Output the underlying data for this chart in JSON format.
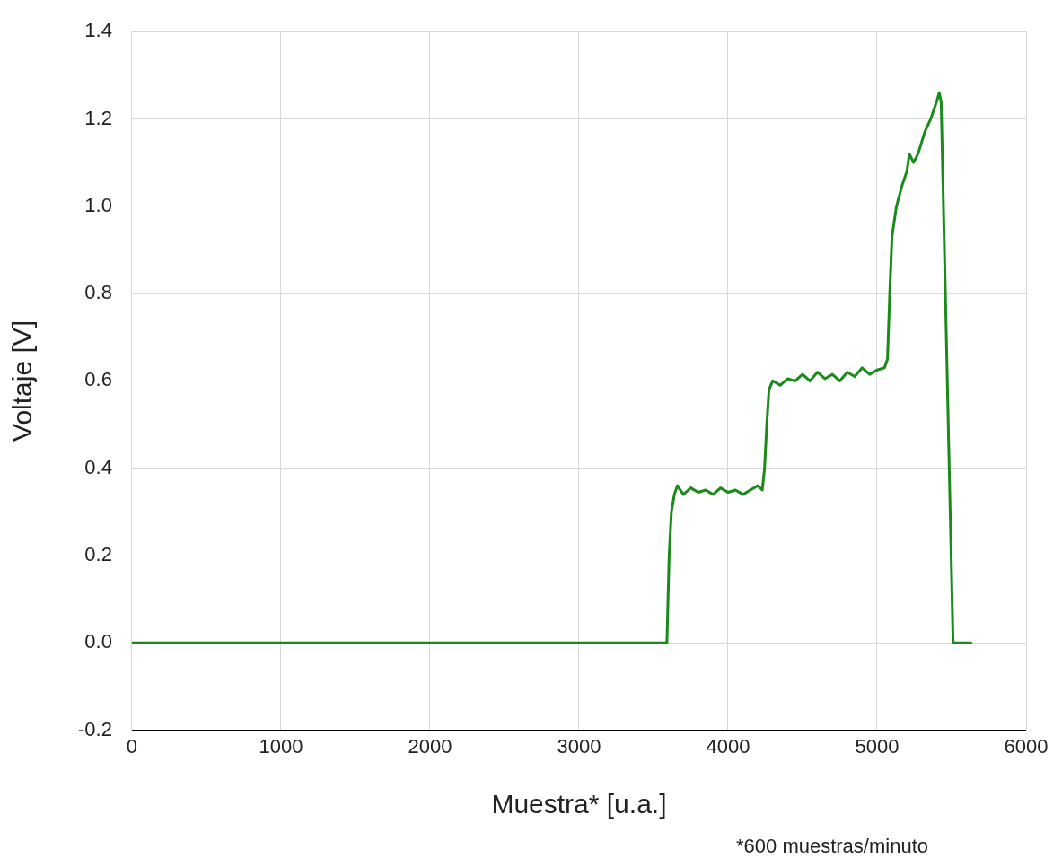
{
  "chart_data": {
    "type": "line",
    "xlabel": "Muestra* [u.a.]",
    "ylabel": "Voltaje [V]",
    "annotations": [
      "*600 muestras/minuto"
    ],
    "xlim": [
      0,
      6000
    ],
    "xticks": [
      0,
      1000,
      2000,
      3000,
      4000,
      5000,
      6000
    ],
    "ylim": [
      -0.2,
      1.4
    ],
    "yticks": [
      -0.2,
      {
        "value": 0,
        "label": "0.0"
      },
      0.2,
      0.4,
      0.6,
      0.8,
      {
        "value": 1,
        "label": "1.0"
      },
      1.2,
      1.4
    ],
    "grid": true,
    "legend": false,
    "marker": "none",
    "line_style": "solid",
    "series": [
      {
        "color": "#1a8a1a",
        "x": [
          0,
          3590,
          3605,
          3620,
          3640,
          3660,
          3700,
          3750,
          3800,
          3850,
          3900,
          3950,
          4000,
          4050,
          4100,
          4150,
          4200,
          4230,
          4245,
          4260,
          4275,
          4300,
          4350,
          4400,
          4450,
          4500,
          4550,
          4600,
          4650,
          4700,
          4750,
          4800,
          4850,
          4900,
          4950,
          5000,
          5050,
          5070,
          5085,
          5100,
          5130,
          5170,
          5200,
          5217,
          5245,
          5275,
          5320,
          5360,
          5400,
          5417,
          5430,
          5510,
          5630
        ],
        "values": [
          0,
          0,
          0.2,
          0.3,
          0.34,
          0.36,
          0.34,
          0.355,
          0.345,
          0.35,
          0.34,
          0.355,
          0.345,
          0.35,
          0.34,
          0.35,
          0.36,
          0.35,
          0.4,
          0.5,
          0.58,
          0.6,
          0.59,
          0.605,
          0.6,
          0.615,
          0.6,
          0.62,
          0.605,
          0.615,
          0.6,
          0.62,
          0.61,
          0.63,
          0.615,
          0.625,
          0.63,
          0.65,
          0.8,
          0.93,
          1.0,
          1.05,
          1.08,
          1.12,
          1.1,
          1.12,
          1.17,
          1.2,
          1.24,
          1.26,
          1.24,
          0,
          0
        ]
      }
    ]
  }
}
